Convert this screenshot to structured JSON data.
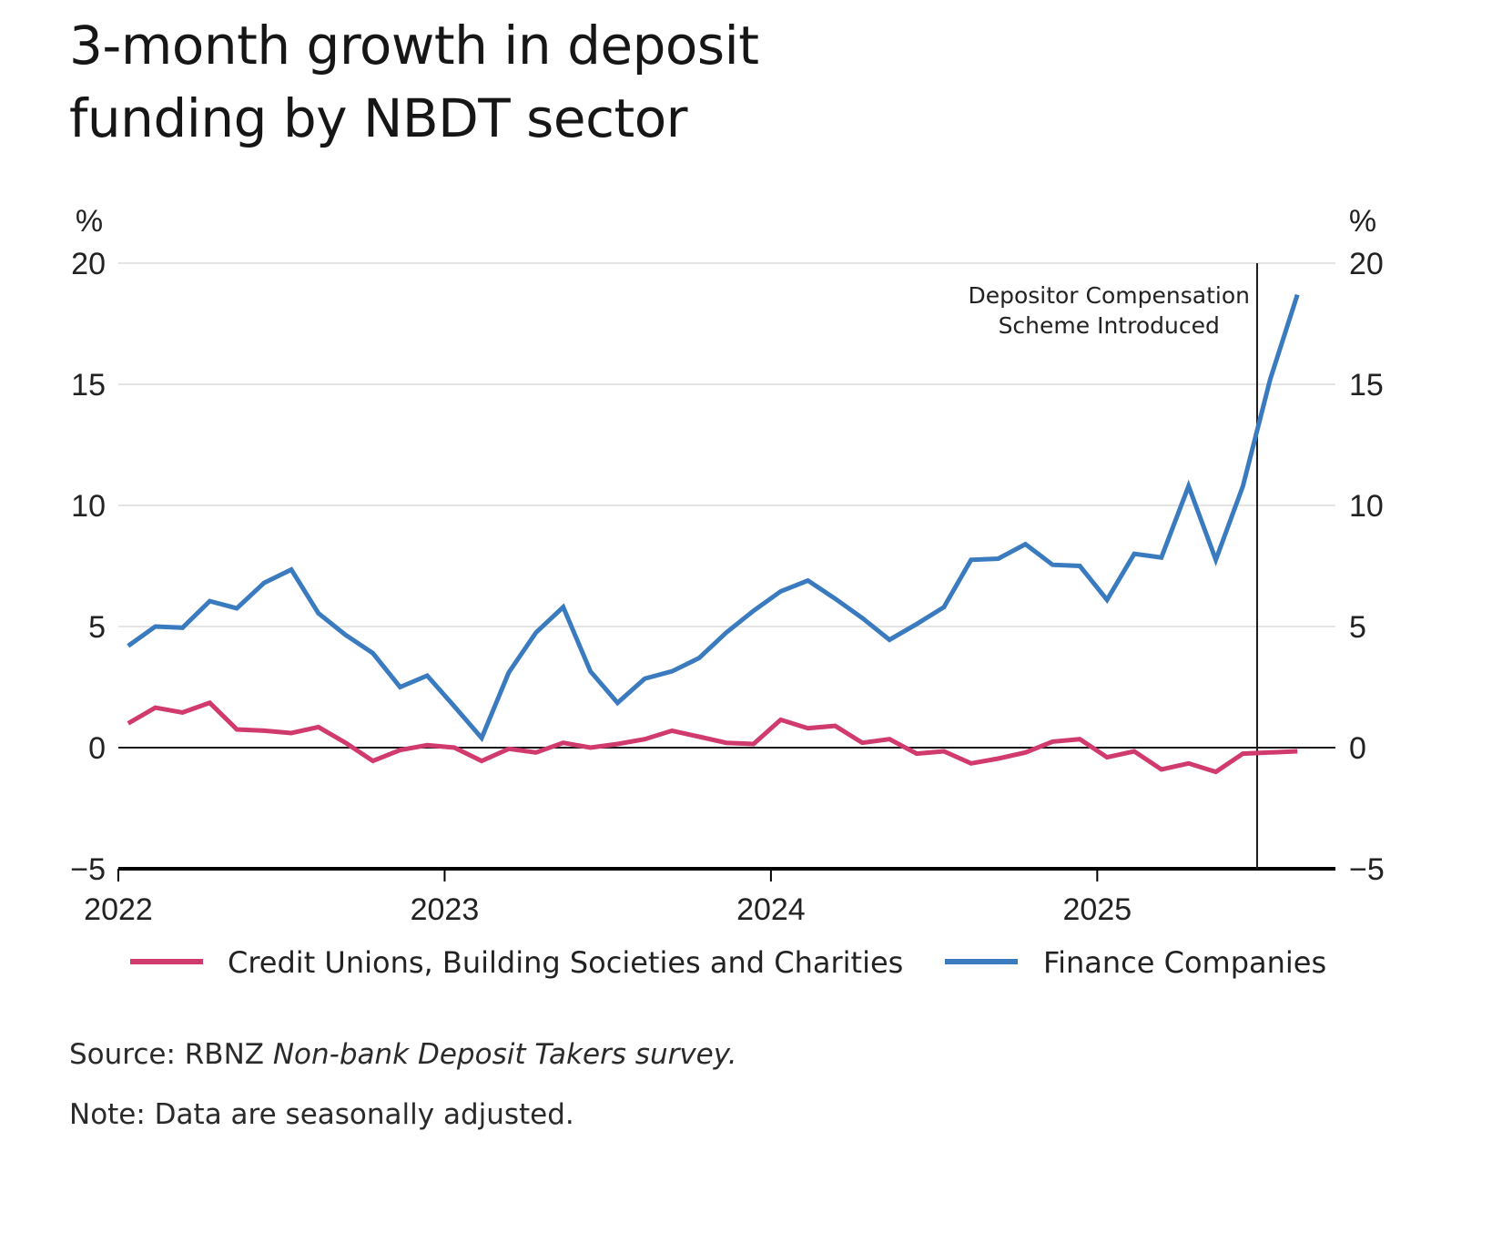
{
  "title_lines": [
    "3-month growth in deposit",
    "funding by NBDT sector"
  ],
  "footnotes": {
    "source_prefix": "Source: RBNZ ",
    "source_italic": "Non-bank Deposit Takers survey.",
    "note": "Note: Data are seasonally adjusted."
  },
  "chart_data": {
    "type": "line",
    "title": "3-month growth in deposit funding by NBDT sector",
    "xlabel": "",
    "ylabel": "%",
    "ylabel_right": "%",
    "xlim": [
      2022,
      2025.75
    ],
    "ylim": [
      -5,
      20
    ],
    "yticks": [
      -5,
      0,
      5,
      10,
      15,
      20
    ],
    "ytick_labels": [
      "−5",
      "0",
      "5",
      "10",
      "15",
      "20"
    ],
    "xticks": [
      2022,
      2023,
      2024,
      2025
    ],
    "xtick_labels": [
      "2022",
      "2023",
      "2024",
      "2025"
    ],
    "grid": true,
    "legend_position": "bottom",
    "colors": {
      "credit_unions": "#d03a6c",
      "finance_companies": "#3a7bbf"
    },
    "x_start": 2022.03,
    "x_step_months": 1,
    "series": [
      {
        "name": "Credit Unions, Building Societies and Charities",
        "key": "credit_unions",
        "values": [
          1.0,
          1.65,
          1.45,
          1.85,
          0.75,
          0.7,
          0.6,
          0.85,
          0.2,
          -0.55,
          -0.1,
          0.1,
          0.0,
          -0.55,
          -0.05,
          -0.2,
          0.2,
          0.0,
          0.15,
          0.35,
          0.7,
          0.45,
          0.2,
          0.15,
          1.15,
          0.8,
          0.9,
          0.2,
          0.35,
          -0.25,
          -0.15,
          -0.65,
          -0.45,
          -0.2,
          0.25,
          0.35,
          -0.4,
          -0.15,
          -0.9,
          -0.65,
          -1.0,
          -0.25,
          -0.2,
          -0.15
        ]
      },
      {
        "name": "Finance Companies",
        "key": "finance_companies",
        "values": [
          4.2,
          5.0,
          4.95,
          6.05,
          5.75,
          6.8,
          7.35,
          5.55,
          4.65,
          3.9,
          2.5,
          2.97,
          1.7,
          0.4,
          3.1,
          4.75,
          5.8,
          3.15,
          1.85,
          2.85,
          3.15,
          3.7,
          4.75,
          5.65,
          6.45,
          6.9,
          6.15,
          5.35,
          4.45,
          5.1,
          5.8,
          7.75,
          7.8,
          8.4,
          7.55,
          7.5,
          6.1,
          8.0,
          7.85,
          10.8,
          7.75,
          10.8,
          15.2,
          18.7
        ]
      }
    ],
    "annotations": [
      {
        "type": "vline",
        "x": 2025.49,
        "text_lines": [
          "Depositor Compensation",
          "Scheme Introduced"
        ]
      }
    ]
  }
}
